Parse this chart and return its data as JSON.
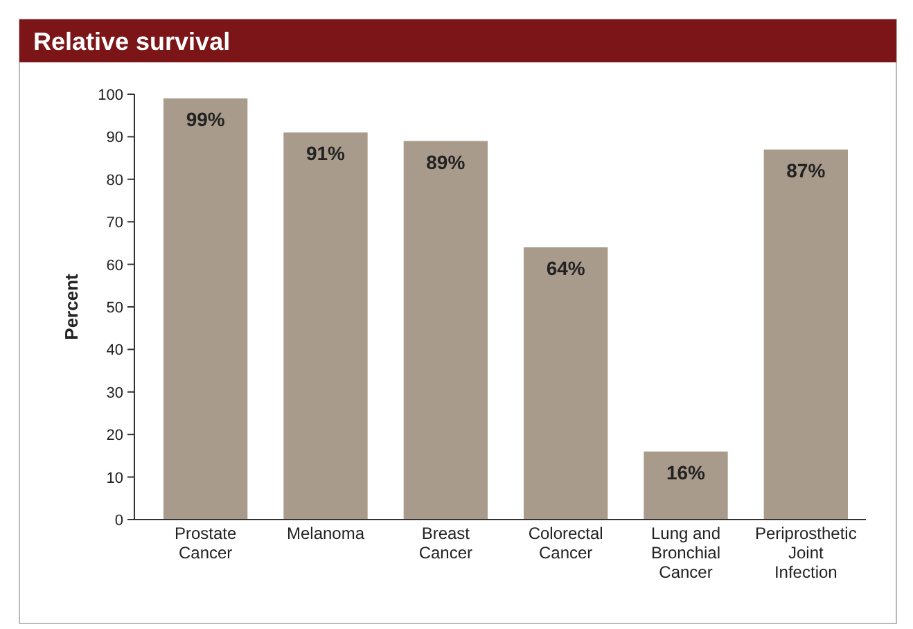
{
  "chart_data": {
    "type": "bar",
    "title": "Relative survival",
    "ylabel": "Percent",
    "categories": [
      "Prostate Cancer",
      "Melanoma",
      "Breast Cancer",
      "Colorectal Cancer",
      "Lung and Bronchial Cancer",
      "Periprosthetic Joint Infection"
    ],
    "values": [
      99,
      91,
      89,
      64,
      16,
      87
    ],
    "value_labels": [
      "99%",
      "91%",
      "89%",
      "64%",
      "16%",
      "87%"
    ],
    "color": "#a99b8b",
    "ylim": [
      0,
      100
    ],
    "yticks": [
      0,
      10,
      20,
      30,
      40,
      50,
      60,
      70,
      80,
      90,
      100
    ]
  }
}
